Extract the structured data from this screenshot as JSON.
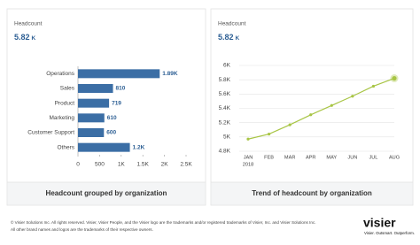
{
  "chart_data": [
    {
      "type": "bar",
      "title": "Headcount",
      "kpi": "5.82",
      "kpi_unit": "K",
      "categories": [
        "Operations",
        "Sales",
        "Product",
        "Marketing",
        "Customer Support",
        "Others"
      ],
      "values": [
        1890,
        810,
        719,
        610,
        600,
        1200
      ],
      "value_labels": [
        "1.89K",
        "810",
        "719",
        "610",
        "600",
        "1.2K"
      ],
      "color": "#3b6ea5",
      "xlim": [
        0,
        2500
      ],
      "xticks": [
        0,
        500,
        {
          "value": 1000,
          "label": "1K"
        },
        {
          "value": 1500,
          "label": "1.5K"
        },
        {
          "value": 2000,
          "label": "2K"
        },
        {
          "value": 2500,
          "label": "2.5K"
        }
      ],
      "caption": "Headcount grouped by organization"
    },
    {
      "type": "line",
      "title": "Headcount",
      "kpi": "5.82",
      "kpi_unit": "K",
      "categories": [
        "JAN",
        "FEB",
        "MAR",
        "APR",
        "MAY",
        "JUN",
        "JUL",
        "AUG"
      ],
      "x_sublabel": "2018",
      "values": [
        4970,
        5040,
        5170,
        5310,
        5440,
        5570,
        5710,
        5820
      ],
      "color": "#a8c545",
      "ylim": [
        4800,
        6000
      ],
      "yticks": [
        {
          "value": 4800,
          "label": "4.8K"
        },
        {
          "value": 5000,
          "label": "5K"
        },
        {
          "value": 5200,
          "label": "5.2K"
        },
        {
          "value": 5400,
          "label": "5.4K"
        },
        {
          "value": 5600,
          "label": "5.6K"
        },
        {
          "value": 5800,
          "label": "5.8K"
        },
        {
          "value": 6000,
          "label": "6K"
        }
      ],
      "grid": true,
      "caption": "Trend of headcount by organization"
    }
  ],
  "footer": {
    "lines": [
      "© Visier Solutions Inc. All rights reserved. Visier, Visier People, and the Visier logo are the trademarks and/or registered trademarks of Visier, Inc. and Visier Solutions Inc.",
      "All other brand names and logos are the trademarks of their respective owners."
    ],
    "logo": "visier",
    "tagline": "Visier. Outsmart. Outperform."
  }
}
